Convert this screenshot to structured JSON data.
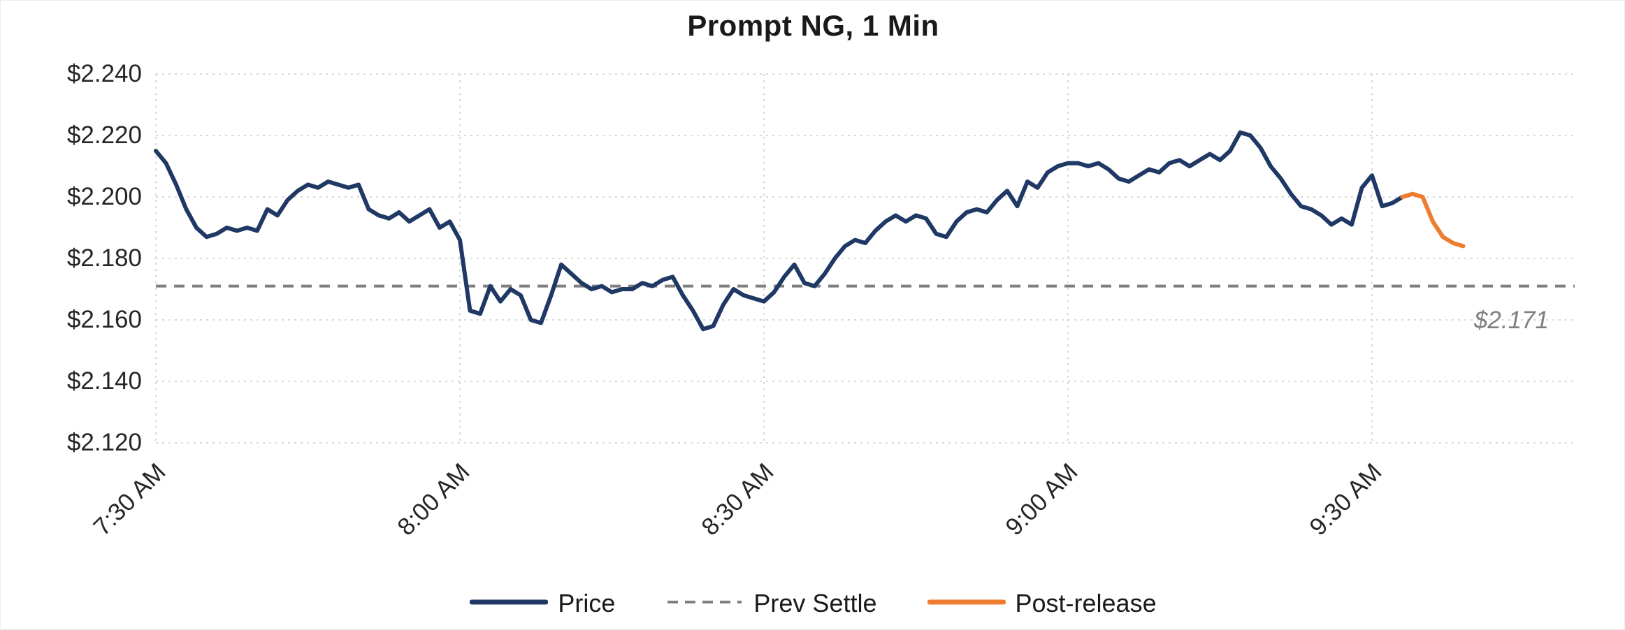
{
  "chart_data": {
    "type": "line",
    "title": "Prompt NG, 1 Min",
    "prev_settle": 2.171,
    "prev_settle_label": "$2.171",
    "x_axis": {
      "start_time": "7:30 AM",
      "step_minutes": 1,
      "tick_labels": [
        "7:30 AM",
        "8:00 AM",
        "8:30 AM",
        "9:00 AM",
        "9:30 AM"
      ],
      "tick_minutes": [
        0,
        30,
        60,
        90,
        120
      ],
      "minutes_domain": [
        0,
        140
      ]
    },
    "y_axis": {
      "tick_labels": [
        "$2.240",
        "$2.220",
        "$2.200",
        "$2.180",
        "$2.160",
        "$2.140",
        "$2.120"
      ],
      "tick_values": [
        2.24,
        2.22,
        2.2,
        2.18,
        2.16,
        2.14,
        2.12
      ],
      "ylim": [
        2.12,
        2.24
      ],
      "tick_step": 0.02,
      "grid": true
    },
    "series": [
      {
        "name": "Price",
        "color": "#1F3864",
        "style": "solid",
        "start_minute": 0,
        "step_minutes": 1,
        "values": [
          2.215,
          2.211,
          2.204,
          2.196,
          2.19,
          2.187,
          2.188,
          2.19,
          2.189,
          2.19,
          2.189,
          2.196,
          2.194,
          2.199,
          2.202,
          2.204,
          2.203,
          2.205,
          2.204,
          2.203,
          2.204,
          2.196,
          2.194,
          2.193,
          2.195,
          2.192,
          2.194,
          2.196,
          2.19,
          2.192,
          2.186,
          2.163,
          2.162,
          2.171,
          2.166,
          2.17,
          2.168,
          2.16,
          2.159,
          2.168,
          2.178,
          2.175,
          2.172,
          2.17,
          2.171,
          2.169,
          2.17,
          2.17,
          2.172,
          2.171,
          2.173,
          2.174,
          2.168,
          2.163,
          2.157,
          2.158,
          2.165,
          2.17,
          2.168,
          2.167,
          2.166,
          2.169,
          2.174,
          2.178,
          2.172,
          2.171,
          2.175,
          2.18,
          2.184,
          2.186,
          2.185,
          2.189,
          2.192,
          2.194,
          2.192,
          2.194,
          2.193,
          2.188,
          2.187,
          2.192,
          2.195,
          2.196,
          2.195,
          2.199,
          2.202,
          2.197,
          2.205,
          2.203,
          2.208,
          2.21,
          2.211,
          2.211,
          2.21,
          2.211,
          2.209,
          2.206,
          2.205,
          2.207,
          2.209,
          2.208,
          2.211,
          2.212,
          2.21,
          2.212,
          2.214,
          2.212,
          2.215,
          2.221,
          2.22,
          2.216,
          2.21,
          2.206,
          2.201,
          2.197,
          2.196,
          2.194,
          2.191,
          2.193,
          2.191,
          2.203,
          2.207,
          2.197,
          2.198,
          2.2
        ]
      },
      {
        "name": "Prev Settle",
        "color": "#7F7F7F",
        "style": "dashed",
        "value": 2.171
      },
      {
        "name": "Post-release",
        "color": "#ED7D31",
        "style": "solid",
        "start_minute": 123,
        "step_minutes": 1,
        "values": [
          2.2,
          2.201,
          2.2,
          2.192,
          2.187,
          2.185,
          2.184
        ]
      }
    ],
    "legend": [
      {
        "label": "Price",
        "color": "#1F3864",
        "style": "solid"
      },
      {
        "label": "Prev Settle",
        "color": "#7F7F7F",
        "style": "dashed"
      },
      {
        "label": "Post-release",
        "color": "#ED7D31",
        "style": "solid"
      }
    ],
    "colors": {
      "price": "#1F3864",
      "prev_settle": "#7F7F7F",
      "post_release": "#ED7D31",
      "gridline": "#D9D9D9",
      "axis_text": "#262626",
      "annotation_text": "#808080"
    },
    "legend_position": "bottom"
  }
}
